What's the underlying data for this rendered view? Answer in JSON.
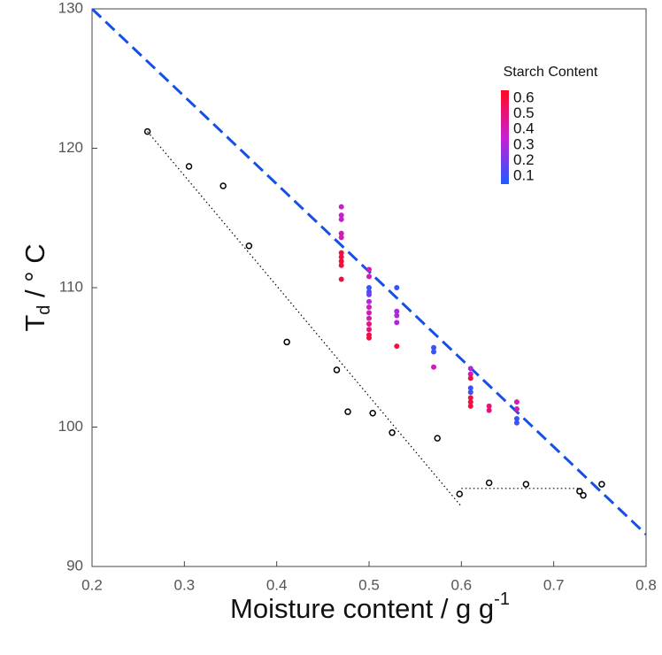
{
  "chart_data": {
    "type": "scatter",
    "x_label": "Moisture content / g g",
    "x_label_sup": "-1",
    "y_label": "T",
    "y_label_sub": "d",
    "y_label_rest": " / ° C",
    "xlim": [
      0.2,
      0.8
    ],
    "xticks": [
      0.2,
      0.3,
      0.4,
      0.5,
      0.6,
      0.7,
      0.8
    ],
    "ylim": [
      90,
      130
    ],
    "yticks": [
      90,
      100,
      110,
      120,
      130
    ],
    "colorbar": {
      "title": "Starch Content",
      "clim": [
        0.05,
        0.65
      ],
      "ticks": [
        0.1,
        0.2,
        0.3,
        0.4,
        0.5,
        0.6
      ],
      "colormap": [
        "#1e5cff",
        "#c81ed2",
        "#ff0a1e"
      ]
    },
    "series": [
      {
        "marker": "open-circle",
        "color": "#000000",
        "x": [
          0.26,
          0.305,
          0.342,
          0.37,
          0.411,
          0.465,
          0.477,
          0.504,
          0.525,
          0.574,
          0.598,
          0.63,
          0.67,
          0.728,
          0.732,
          0.752
        ],
        "values": [
          121.2,
          118.7,
          117.3,
          113.0,
          106.1,
          104.1,
          101.1,
          101.0,
          99.6,
          99.2,
          95.2,
          96.0,
          95.9,
          95.4,
          95.1,
          95.9
        ]
      },
      {
        "marker": "filled-circle",
        "x": [
          0.47,
          0.47,
          0.47,
          0.47,
          0.47,
          0.47,
          0.47,
          0.47,
          0.47,
          0.47,
          0.5,
          0.5,
          0.5,
          0.5,
          0.5,
          0.5,
          0.5,
          0.5,
          0.5,
          0.5,
          0.5,
          0.5,
          0.5,
          0.53,
          0.53,
          0.53,
          0.53,
          0.53,
          0.57,
          0.57,
          0.57,
          0.61,
          0.61,
          0.61,
          0.61,
          0.61,
          0.61,
          0.61,
          0.61,
          0.63,
          0.63,
          0.66,
          0.66,
          0.66,
          0.66
        ],
        "values": [
          115.8,
          115.2,
          114.9,
          113.9,
          113.6,
          112.5,
          112.2,
          111.9,
          111.6,
          110.6,
          111.3,
          110.8,
          110.0,
          109.7,
          109.5,
          109.0,
          108.6,
          108.2,
          107.8,
          107.4,
          107.0,
          106.6,
          106.4,
          110.0,
          108.3,
          108.0,
          107.5,
          105.8,
          105.7,
          105.4,
          104.3,
          104.2,
          103.8,
          103.5,
          102.8,
          102.5,
          102.1,
          101.8,
          101.5,
          101.5,
          101.2,
          101.8,
          101.3,
          100.6,
          100.3
        ],
        "c": [
          0.35,
          0.35,
          0.35,
          0.4,
          0.4,
          0.6,
          0.6,
          0.6,
          0.6,
          0.6,
          0.4,
          0.4,
          0.1,
          0.1,
          0.2,
          0.3,
          0.4,
          0.4,
          0.4,
          0.5,
          0.5,
          0.6,
          0.6,
          0.1,
          0.3,
          0.3,
          0.3,
          0.6,
          0.1,
          0.1,
          0.4,
          0.3,
          0.4,
          0.6,
          0.1,
          0.1,
          0.6,
          0.6,
          0.6,
          0.5,
          0.5,
          0.4,
          0.4,
          0.1,
          0.1
        ]
      }
    ],
    "lines": [
      {
        "style": "dashed",
        "color": "#1450e6",
        "x": [
          0.2,
          0.8
        ],
        "values": [
          130,
          92.3
        ]
      },
      {
        "style": "dotted",
        "color": "#000000",
        "x": [
          0.26,
          0.6
        ],
        "values": [
          121.2,
          94.3
        ]
      },
      {
        "style": "dotted",
        "color": "#000000",
        "x": [
          0.6,
          0.73
        ],
        "values": [
          95.6,
          95.6
        ]
      }
    ]
  }
}
